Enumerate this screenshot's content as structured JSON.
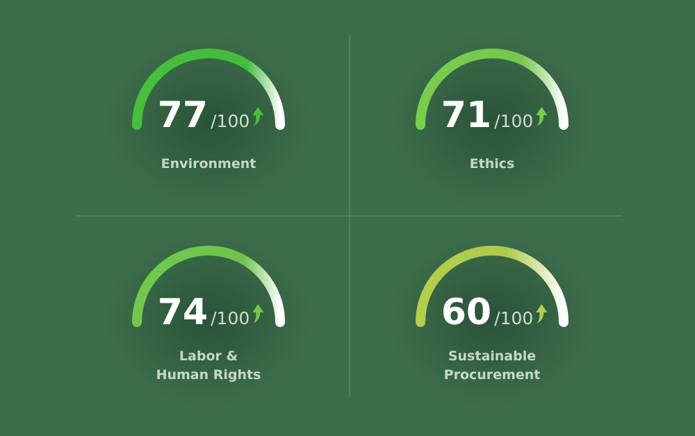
{
  "gauges": [
    {
      "score": 77,
      "max": 100,
      "out_of": "/100",
      "label": [
        "Environment"
      ],
      "color": "#45c03c"
    },
    {
      "score": 71,
      "max": 100,
      "out_of": "/100",
      "label": [
        "Ethics"
      ],
      "color": "#79cd4c"
    },
    {
      "score": 74,
      "max": 100,
      "out_of": "/100",
      "label": [
        "Labor &",
        "Human Rights"
      ],
      "color": "#70c94c"
    },
    {
      "score": 60,
      "max": 100,
      "out_of": "/100",
      "label": [
        "Sustainable",
        "Procurement"
      ],
      "color": "#b2d04c"
    }
  ]
}
